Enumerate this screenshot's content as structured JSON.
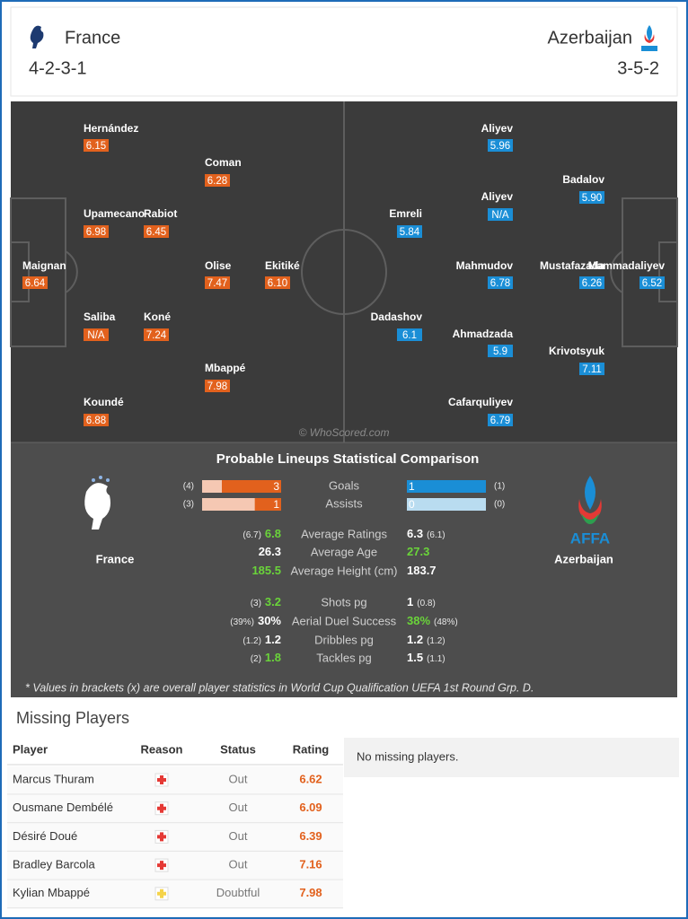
{
  "header": {
    "home": {
      "name": "France",
      "formation": "4-2-3-1"
    },
    "away": {
      "name": "Azerbaijan",
      "formation": "3-5-2"
    }
  },
  "pitch": {
    "watermark": "© WhoScored.com",
    "home_color": "#e2611d",
    "away_color": "#1a8ed6",
    "home_players": [
      {
        "name": "Hernández",
        "rating": "6.15"
      },
      {
        "name": "Coman",
        "rating": "6.28"
      },
      {
        "name": "Upamecano",
        "rating": "6.98"
      },
      {
        "name": "Rabiot",
        "rating": "6.45"
      },
      {
        "name": "Maignan",
        "rating": "6.64"
      },
      {
        "name": "Olise",
        "rating": "7.47"
      },
      {
        "name": "Ekitiké",
        "rating": "6.10"
      },
      {
        "name": "Saliba",
        "rating": "N/A"
      },
      {
        "name": "Koné",
        "rating": "7.24"
      },
      {
        "name": "Mbappé",
        "rating": "7.98"
      },
      {
        "name": "Koundé",
        "rating": "6.88"
      }
    ],
    "away_players": [
      {
        "name": "Aliyev",
        "rating": "5.96"
      },
      {
        "name": "Badalov",
        "rating": "5.90"
      },
      {
        "name": "Aliyev",
        "rating": "N/A"
      },
      {
        "name": "Emreli",
        "rating": "5.84"
      },
      {
        "name": "Mahmudov",
        "rating": "6.78"
      },
      {
        "name": "Mustafazada",
        "rating": "6.26"
      },
      {
        "name": "Mammadaliyev",
        "rating": "6.52"
      },
      {
        "name": "Dadashov",
        "rating": "6.1"
      },
      {
        "name": "Ahmadzada",
        "rating": "5.9"
      },
      {
        "name": "Krivotsyuk",
        "rating": "7.11"
      },
      {
        "name": "Cafarquliyev",
        "rating": "6.79"
      }
    ]
  },
  "comparison": {
    "title": "Probable Lineups Statistical Comparison",
    "home_team": "France",
    "away_team": "Azerbaijan",
    "away_logo_text": "AFFA",
    "bars": [
      {
        "label": "Goals",
        "home": 3,
        "home_overall": {
          "value": 4,
          "label": "(4)"
        },
        "away": 1,
        "away_overall": {
          "value": 1,
          "label": "(1)"
        }
      },
      {
        "label": "Assists",
        "home": 1,
        "home_overall": {
          "value": 3,
          "label": "(3)"
        },
        "away": 0,
        "away_overall": {
          "value": 0,
          "label": "(0)"
        }
      }
    ],
    "rows": [
      {
        "label": "Average Ratings",
        "home": "6.8",
        "home_overall": "(6.7)",
        "away": "6.3",
        "away_overall": "(6.1)",
        "leader": "home"
      },
      {
        "label": "Average Age",
        "home": "26.3",
        "away": "27.3",
        "leader": "away"
      },
      {
        "label": "Average Height (cm)",
        "home": "185.5",
        "away": "183.7",
        "leader": "home"
      },
      {
        "label": "Shots pg",
        "home": "3.2",
        "home_overall": "(3)",
        "away": "1",
        "away_overall": "(0.8)",
        "leader": "home"
      },
      {
        "label": "Aerial Duel Success",
        "home": "30%",
        "home_overall": "(39%)",
        "away": "38%",
        "away_overall": "(48%)",
        "leader": "away"
      },
      {
        "label": "Dribbles pg",
        "home": "1.2",
        "home_overall": "(1.2)",
        "away": "1.2",
        "away_overall": "(1.2)",
        "leader": "none"
      },
      {
        "label": "Tackles pg",
        "home": "1.8",
        "home_overall": "(2)",
        "away": "1.5",
        "away_overall": "(1.1)",
        "leader": "home"
      }
    ],
    "footnote": "* Values in brackets (x) are overall player statistics in World Cup Qualification UEFA 1st Round Grp. D."
  },
  "missing": {
    "title": "Missing Players",
    "columns": [
      "Player",
      "Reason",
      "Status",
      "Rating"
    ],
    "rows": [
      {
        "player": "Marcus Thuram",
        "icon": "#e53935",
        "status": "Out",
        "rating": "6.62"
      },
      {
        "player": "Ousmane Dembélé",
        "icon": "#e53935",
        "status": "Out",
        "rating": "6.09"
      },
      {
        "player": "Désiré Doué",
        "icon": "#e53935",
        "status": "Out",
        "rating": "6.39"
      },
      {
        "player": "Bradley Barcola",
        "icon": "#e53935",
        "status": "Out",
        "rating": "7.16"
      },
      {
        "player": "Kylian Mbappé",
        "icon": "#f5d34a",
        "status": "Doubtful",
        "rating": "7.98"
      }
    ],
    "away_note": "No missing players."
  }
}
